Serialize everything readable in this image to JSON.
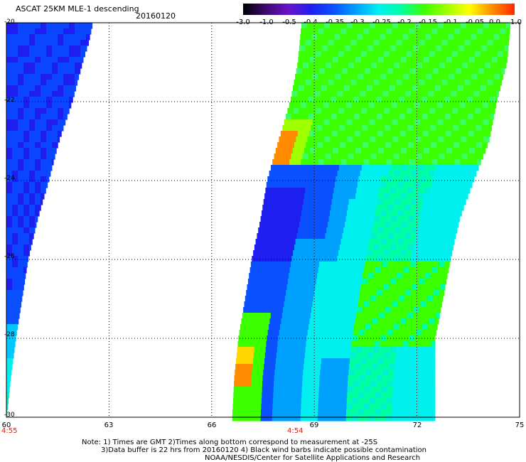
{
  "header": {
    "title": "ASCAT 25KM MLE-1 descending",
    "date": "20160120"
  },
  "colorbar": {
    "labels": [
      "-3.0",
      "-1.0",
      "-0.5",
      "-0.4",
      "-0.35",
      "-0.3",
      "-0.25",
      "-0.2",
      "-0.15",
      "-0.1",
      "-0.05",
      "0.0",
      "1.0"
    ],
    "colors": [
      "#000000",
      "#3c0a6e",
      "#6a14c8",
      "#1e1ef0",
      "#0a50ff",
      "#00a0ff",
      "#00f0f0",
      "#00ffa0",
      "#3cff00",
      "#a0ff00",
      "#ffff00",
      "#ff8c00",
      "#ff2800"
    ]
  },
  "axes": {
    "lat_labels": [
      "-20",
      "-22",
      "-24",
      "-26",
      "-28",
      "-30"
    ],
    "lon_labels": [
      "60",
      "63",
      "66",
      "69",
      "72",
      "75"
    ],
    "lat_range": [
      -30,
      -20
    ],
    "lon_range": [
      60,
      75
    ]
  },
  "times": {
    "left": "4:55",
    "middle": "4:54"
  },
  "notes": {
    "line1": "Note: 1) Times are GMT 2)Times along bottom correspond to measurement at -25S",
    "line2": "3)Data buffer is 22 hrs from 20160120 4) Black wind barbs indicate possible contamination",
    "line3": "NOAA/NESDIS/Center for Satellite Applications and Research"
  }
}
